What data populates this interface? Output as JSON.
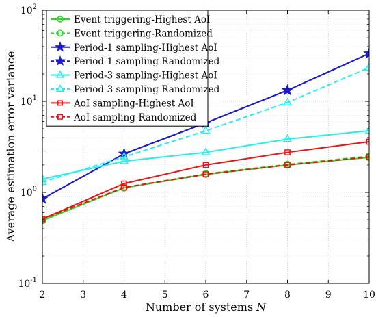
{
  "chart_data": {
    "type": "line",
    "xlabel": "Number of systems",
    "xlabel_var": "N",
    "ylabel": "Average estimation error variance",
    "x": [
      2,
      4,
      6,
      8,
      10
    ],
    "xlim": [
      2,
      10
    ],
    "ylim": [
      0.1,
      100
    ],
    "yscale": "log",
    "xticks": [
      2,
      3,
      4,
      5,
      6,
      7,
      8,
      9,
      10
    ],
    "yticks": [
      {
        "value": 0.1,
        "base": "10",
        "exp": "-1"
      },
      {
        "value": 1,
        "base": "10",
        "exp": "0"
      },
      {
        "value": 10,
        "base": "10",
        "exp": "1"
      },
      {
        "value": 100,
        "base": "10",
        "exp": "2"
      }
    ],
    "grid": true,
    "legend_position": "top-left",
    "series": [
      {
        "name": "Event triggering-Highest AoI",
        "color": "#22dd22",
        "dash": "solid",
        "marker": "circle",
        "values": [
          0.49,
          1.12,
          1.58,
          2.0,
          2.42
        ]
      },
      {
        "name": "Event triggering-Randomized",
        "color": "#22dd22",
        "dash": "dashed",
        "marker": "circle",
        "values": [
          0.5,
          1.13,
          1.6,
          2.03,
          2.5
        ]
      },
      {
        "name": "Period-1 sampling-Highest AoI",
        "color": "#1a1acc",
        "dash": "solid",
        "marker": "star",
        "values": [
          0.85,
          2.65,
          5.8,
          13.2,
          33.5
        ]
      },
      {
        "name": "Period-1 sampling-Randomized",
        "color": "#1a1acc",
        "dash": "dashed",
        "marker": "star",
        "values": [
          0.85,
          2.65,
          5.8,
          13.2,
          33.5
        ]
      },
      {
        "name": "Period-3 sampling-Highest AoI",
        "color": "#22eeee",
        "dash": "solid",
        "marker": "triangle",
        "values": [
          1.4,
          2.2,
          2.75,
          3.85,
          4.75
        ]
      },
      {
        "name": "Period-3 sampling-Randomized",
        "color": "#22eeee",
        "dash": "dashed",
        "marker": "triangle",
        "values": [
          1.3,
          2.45,
          4.75,
          9.7,
          23.5
        ]
      },
      {
        "name": "AoI sampling-Highest AoI",
        "color": "#ee1111",
        "dash": "solid",
        "marker": "square",
        "values": [
          0.51,
          1.25,
          2.0,
          2.75,
          3.6
        ]
      },
      {
        "name": "AoI sampling-Randomized",
        "color": "#ee1111",
        "dash": "dashed",
        "marker": "square",
        "values": [
          0.51,
          1.13,
          1.58,
          2.0,
          2.45
        ]
      }
    ]
  }
}
